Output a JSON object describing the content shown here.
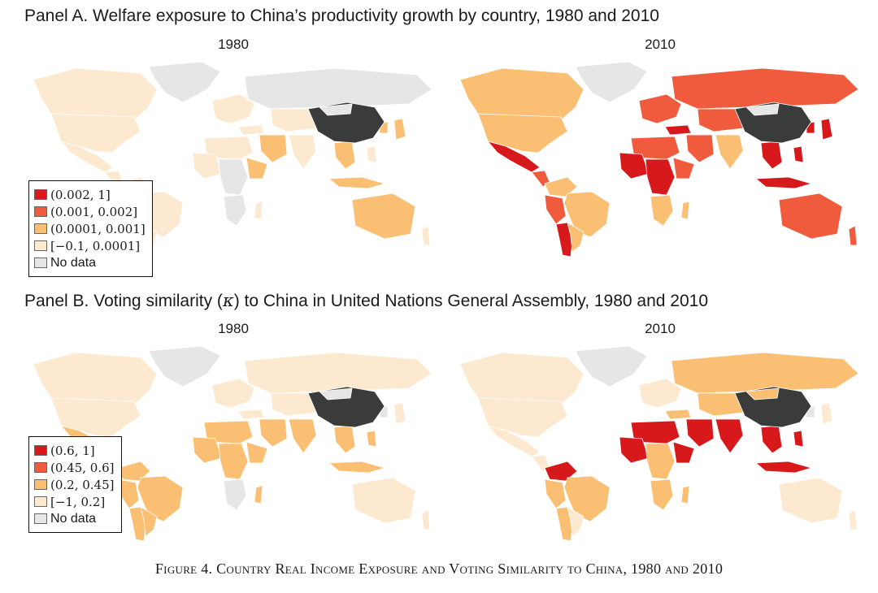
{
  "panel_a": {
    "title": "Panel A. Welfare exposure to China’s productivity growth by country, 1980 and 2010",
    "year_left": "1980",
    "year_right": "2010",
    "legend": [
      {
        "label": "(0.002, 1]",
        "color": "#d7191c"
      },
      {
        "label": "(0.001, 0.002]",
        "color": "#ef5b3c"
      },
      {
        "label": "(0.0001, 0.001]",
        "color": "#fbbf74"
      },
      {
        "label": "[−0.1, 0.0001]",
        "color": "#fde9cf"
      },
      {
        "label": "No data",
        "color": "#e6e6e6"
      }
    ]
  },
  "panel_b": {
    "title_prefix": "Panel B. Voting similarity (",
    "title_kappa": "κ",
    "title_suffix": ") to China in United Nations General Assembly, 1980 and 2010",
    "year_left": "1980",
    "year_right": "2010",
    "legend": [
      {
        "label": "(0.6, 1]",
        "color": "#d7191c"
      },
      {
        "label": "(0.45, 0.6]",
        "color": "#ef5b3c"
      },
      {
        "label": "(0.2, 0.45]",
        "color": "#fbbf74"
      },
      {
        "label": "[−1, 0.2]",
        "color": "#fde9cf"
      },
      {
        "label": "No data",
        "color": "#e6e6e6"
      }
    ]
  },
  "china_color": "#3a3c3c",
  "caption": "Figure 4. Country Real Income Exposure and Voting Similarity to China, 1980 and 2010"
}
